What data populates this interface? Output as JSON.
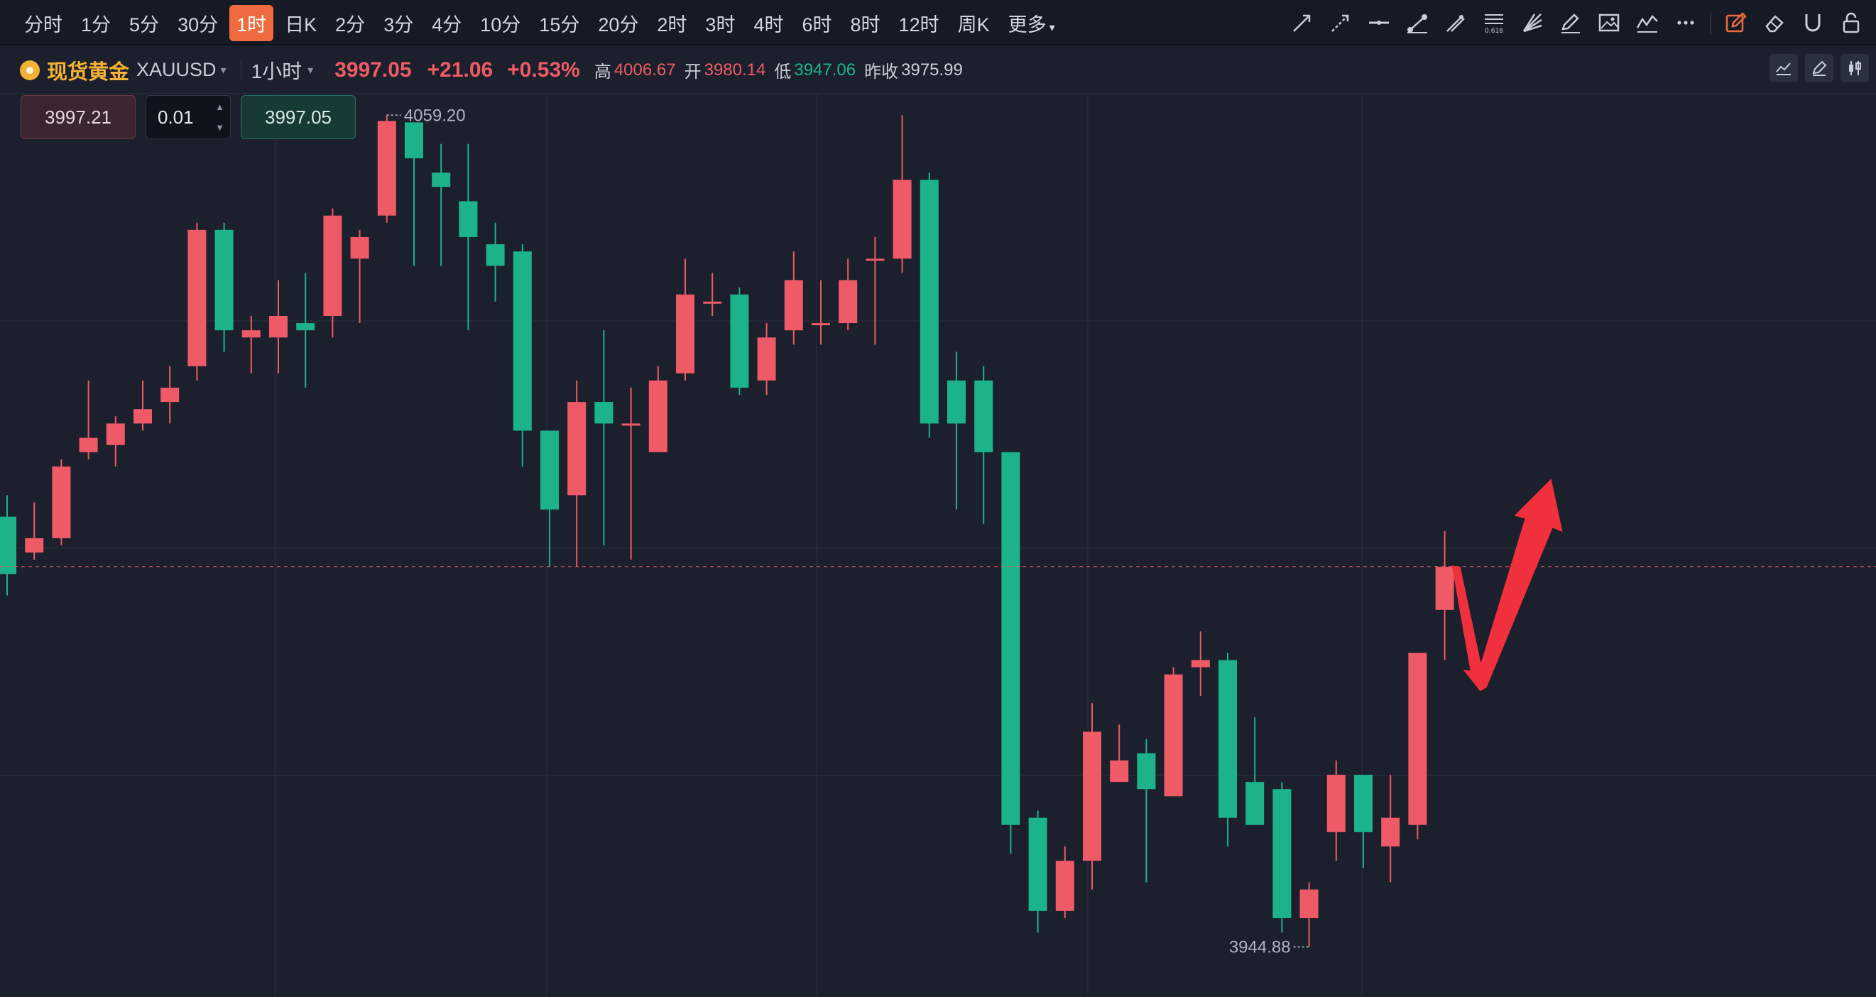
{
  "toolbar": {
    "timeframes": [
      "分时",
      "1分",
      "5分",
      "30分",
      "1时",
      "日K",
      "2分",
      "3分",
      "4分",
      "10分",
      "15分",
      "20分",
      "2时",
      "3时",
      "4时",
      "6时",
      "8时",
      "12时",
      "周K",
      "更多"
    ],
    "active": "1时",
    "tools": [
      "trend-line-icon",
      "ray-icon",
      "horizontal-line-icon",
      "segment-icon",
      "parallel-line-icon",
      "fib-retracement-icon",
      "fan-icon",
      "brush-icon",
      "image-icon",
      "pattern-icon",
      "more-icon",
      "draw-mode-icon",
      "eraser-icon",
      "magnet-icon",
      "lock-icon"
    ]
  },
  "info": {
    "name": "现货黄金",
    "code": "XAUUSD",
    "interval": "1小时",
    "last": "3997.05",
    "change": "+21.06",
    "change_pct": "+0.53%",
    "high_label": "高",
    "high": "4006.67",
    "open_label": "开",
    "open": "3980.14",
    "low_label": "低",
    "low": "3947.06",
    "prev_label": "昨收",
    "prev": "3975.99"
  },
  "order": {
    "sell_price": "3997.21",
    "quantity": "0.01",
    "buy_price": "3997.05"
  },
  "colors": {
    "up": "#ef5a67",
    "down": "#1db38a",
    "bg": "#1b202c",
    "grid": "#2a3140",
    "accent": "#f06a3f"
  },
  "chart_data": {
    "type": "candlestick",
    "ylim": [
      3937,
      4063
    ],
    "current_price": 3997.05,
    "high_marker": "4059.20",
    "low_marker": "3944.88",
    "candles": [
      [
        4004,
        3996,
        4007,
        3993
      ],
      [
        3999,
        4001,
        4006,
        3998
      ],
      [
        4001,
        4011,
        4012,
        4000
      ],
      [
        4013,
        4015,
        4023,
        4012
      ],
      [
        4014,
        4017,
        4018,
        4011
      ],
      [
        4017,
        4019,
        4023,
        4016
      ],
      [
        4020,
        4022,
        4025,
        4017
      ],
      [
        4025,
        4044,
        4045,
        4023
      ],
      [
        4044,
        4030,
        4045,
        4027
      ],
      [
        4029,
        4030,
        4032,
        4024
      ],
      [
        4029,
        4032,
        4037,
        4024
      ],
      [
        4031,
        4030,
        4038,
        4022
      ],
      [
        4032,
        4046,
        4047,
        4029
      ],
      [
        4040,
        4043,
        4044,
        4031
      ],
      [
        4046,
        4059.2,
        4060,
        4045
      ],
      [
        4059,
        4054,
        4059,
        4039
      ],
      [
        4052,
        4050,
        4056,
        4039
      ],
      [
        4048,
        4043,
        4056,
        4030
      ],
      [
        4042,
        4039,
        4045,
        4034
      ],
      [
        4041,
        4016,
        4042,
        4011
      ],
      [
        4016,
        4005,
        4016,
        3997
      ],
      [
        4007,
        4020,
        4023,
        3997
      ],
      [
        4020,
        4017,
        4030,
        4000
      ],
      [
        4017,
        4017,
        4022,
        3998
      ],
      [
        4013,
        4023,
        4025,
        4014
      ],
      [
        4024,
        4035,
        4040,
        4023
      ],
      [
        4034,
        4034,
        4038,
        4032
      ],
      [
        4035,
        4022,
        4036,
        4021
      ],
      [
        4023,
        4029,
        4031,
        4021
      ],
      [
        4030,
        4037,
        4041,
        4028
      ],
      [
        4031,
        4031,
        4037,
        4028
      ],
      [
        4031,
        4037,
        4040,
        4030
      ],
      [
        4040,
        4040,
        4043,
        4028
      ],
      [
        4040,
        4051,
        4060,
        4038
      ],
      [
        4051,
        4017,
        4052,
        4015
      ],
      [
        4023,
        4017,
        4027,
        4005
      ],
      [
        4023,
        4013,
        4025,
        4003
      ],
      [
        4013,
        3961,
        4013,
        3957
      ],
      [
        3962,
        3949,
        3963,
        3946
      ],
      [
        3949,
        3956,
        3958,
        3948
      ],
      [
        3956,
        3974,
        3978,
        3952
      ],
      [
        3967,
        3970,
        3975,
        3969
      ],
      [
        3971,
        3966,
        3973,
        3953
      ],
      [
        3965,
        3982,
        3983,
        3965
      ],
      [
        3983,
        3984,
        3988,
        3979
      ],
      [
        3984,
        3962,
        3985,
        3958
      ],
      [
        3967,
        3961,
        3976,
        3961
      ],
      [
        3966,
        3948,
        3967,
        3946
      ],
      [
        3948,
        3952,
        3953,
        3944
      ],
      [
        3960,
        3968,
        3970,
        3956
      ],
      [
        3968,
        3960,
        3967,
        3955
      ],
      [
        3958,
        3962,
        3968,
        3953
      ],
      [
        3961,
        3985,
        3985,
        3959
      ],
      [
        3991,
        3997,
        4002,
        3984
      ]
    ]
  }
}
